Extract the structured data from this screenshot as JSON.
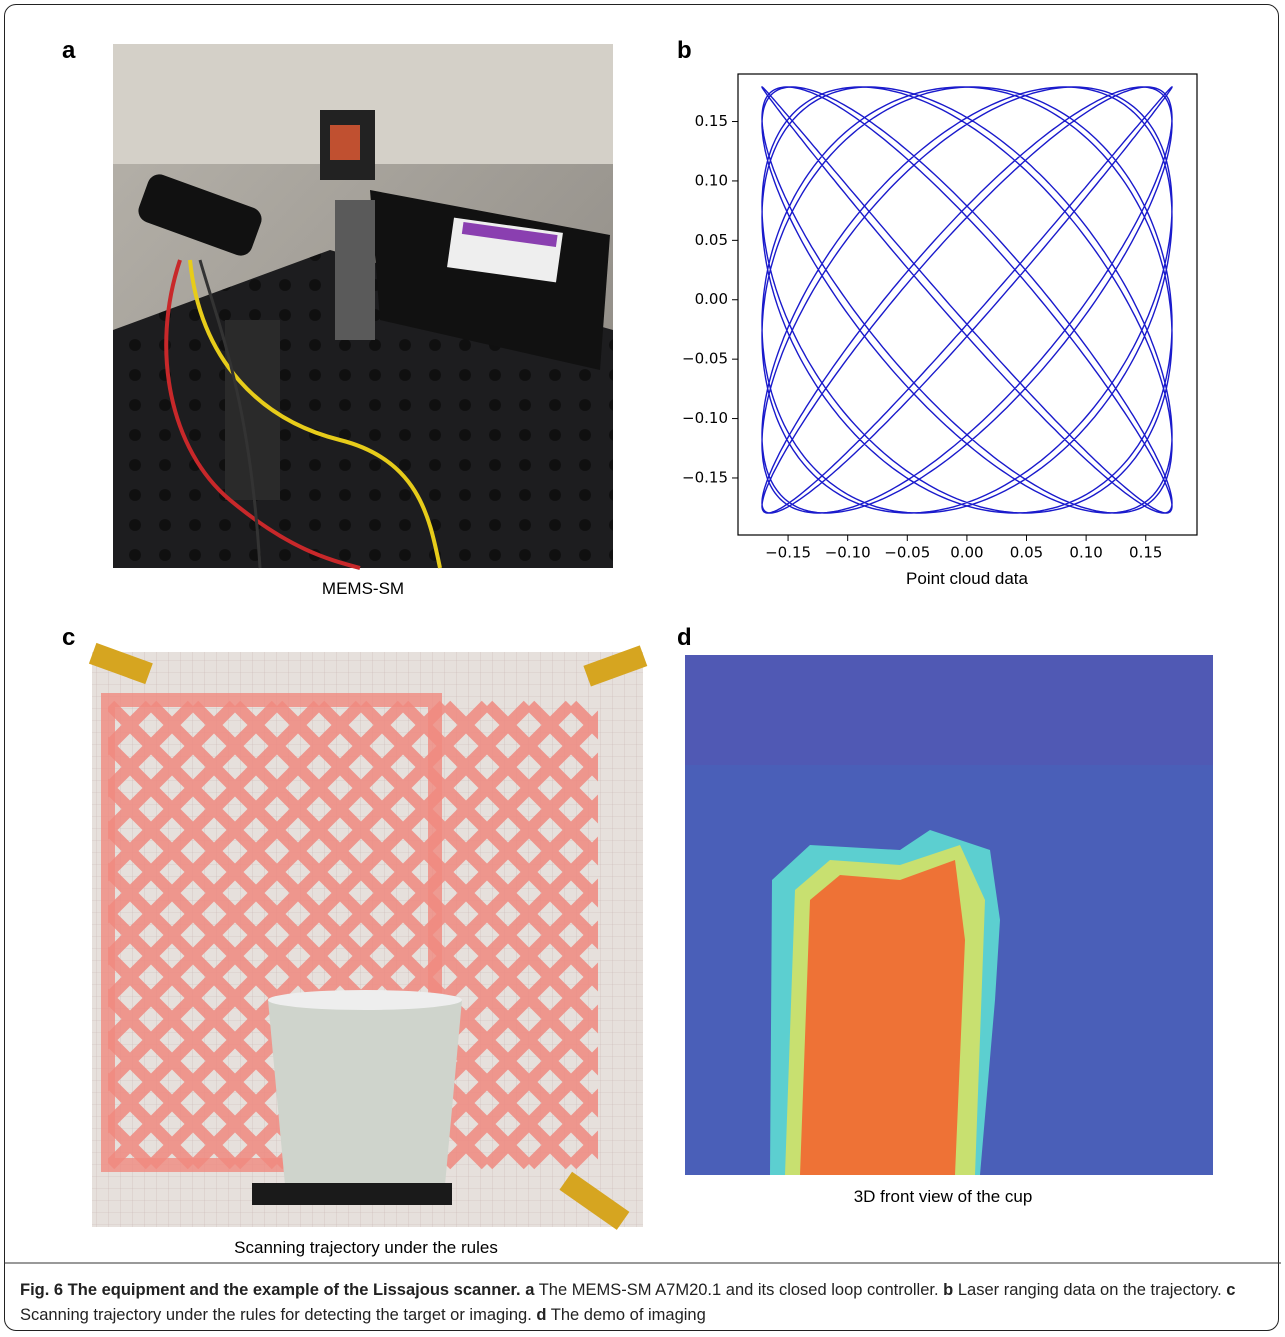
{
  "panels": {
    "a": {
      "label": "a",
      "caption": "MEMS-SM"
    },
    "b": {
      "label": "b",
      "chart_data": {
        "type": "line",
        "xlabel": "Point cloud data",
        "xlim": [
          -0.192,
          0.193
        ],
        "ylim": [
          -0.198,
          0.19
        ],
        "xticks": [
          {
            "value": -0.15,
            "label": "−0.15"
          },
          {
            "value": -0.1,
            "label": "−0.10"
          },
          {
            "value": -0.05,
            "label": "−0.05"
          },
          {
            "value": 0,
            "label": "0.00"
          },
          0.05,
          {
            "value": 0.1,
            "label": "0.10"
          },
          0.15
        ],
        "yticks": [
          {
            "value": -0.15,
            "label": "−0.15"
          },
          {
            "value": -0.1,
            "label": "−0.10"
          },
          {
            "value": -0.05,
            "label": "−0.05"
          },
          {
            "value": 0,
            "label": "0.00"
          },
          0.05,
          {
            "value": 0.1,
            "label": "0.10"
          },
          0.15
        ],
        "color": "#1a1acc"
      }
    },
    "c": {
      "label": "c",
      "caption": "Scanning trajectory under the rules"
    },
    "d": {
      "label": "d",
      "caption": "3D front view of the cup"
    }
  },
  "caption": {
    "title": "Fig. 6 The equipment and the example of the Lissajous scanner.",
    "parts": [
      {
        "label": "a",
        "text": "The MEMS-SM A7M20.1 and its closed loop controller."
      },
      {
        "label": "b",
        "text": "Laser ranging data on the trajectory."
      },
      {
        "label": "c",
        "text": "Scanning trajectory under the rules for detecting the target or imaging."
      },
      {
        "label": "d",
        "text": "The demo of imaging"
      }
    ]
  }
}
